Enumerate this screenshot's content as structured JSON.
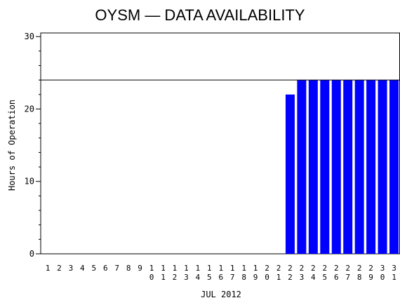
{
  "chart_data": {
    "type": "bar",
    "title": "OYSM  —  DATA AVAILABILITY",
    "xlabel": "JUL 2012",
    "ylabel": "Hours of Operation",
    "ylim": [
      0,
      30.5
    ],
    "yticks": [
      0,
      10,
      20,
      30
    ],
    "reference_line": 24,
    "bar_color": "#0000ff",
    "categories": [
      "1",
      "2",
      "3",
      "4",
      "5",
      "6",
      "7",
      "8",
      "9",
      "10",
      "11",
      "12",
      "13",
      "14",
      "15",
      "16",
      "17",
      "18",
      "19",
      "20",
      "21",
      "22",
      "23",
      "24",
      "25",
      "26",
      "27",
      "28",
      "29",
      "30",
      "31"
    ],
    "values": [
      0,
      0,
      0,
      0,
      0,
      0,
      0,
      0,
      0,
      0,
      0,
      0,
      0,
      0,
      0,
      0,
      0,
      0,
      0,
      0,
      0,
      22,
      24,
      24,
      24,
      24,
      24,
      24,
      24,
      24,
      24
    ]
  }
}
